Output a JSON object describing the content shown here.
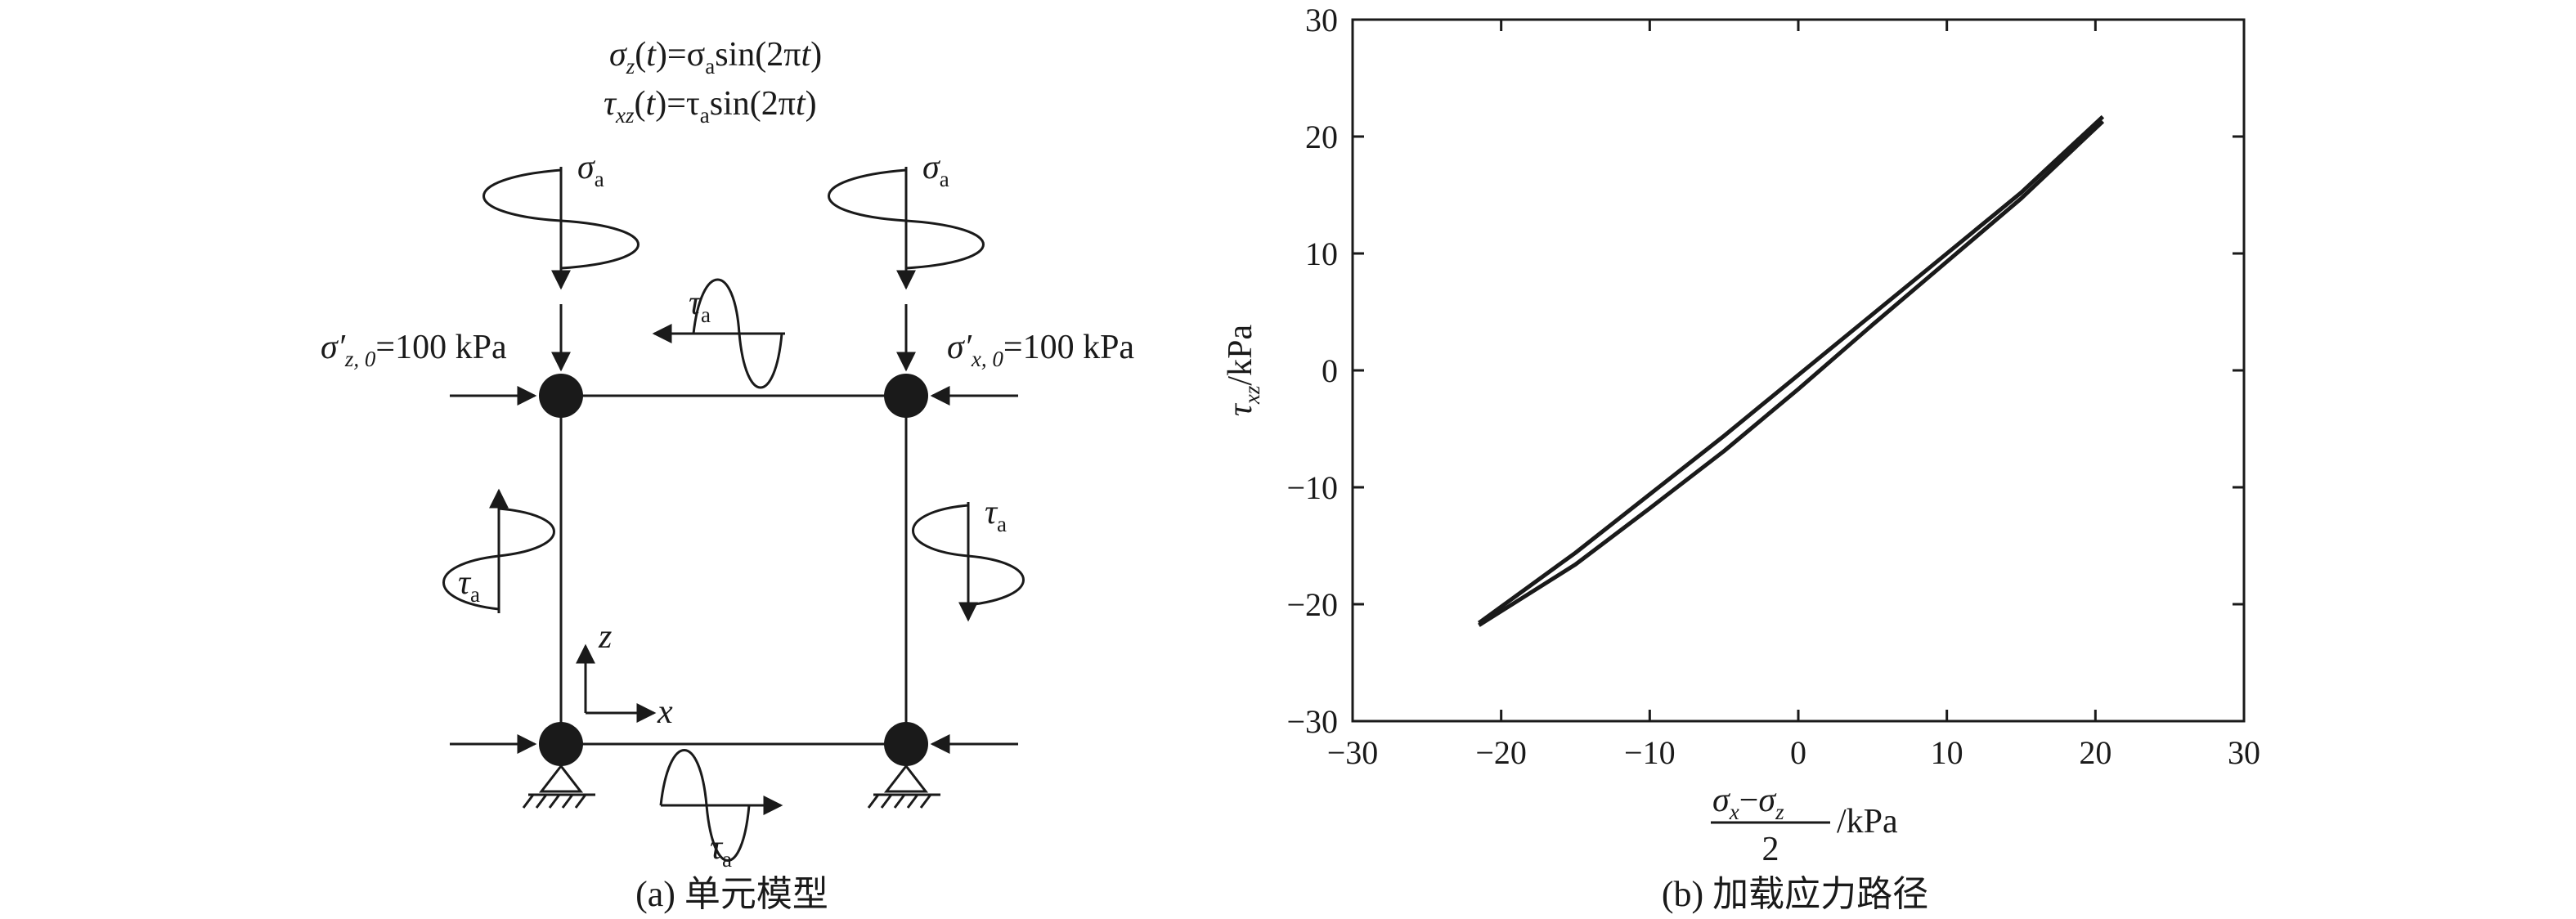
{
  "left_panel": {
    "caption": "(a) 单元模型",
    "eq1": {
      "lhs": "σ",
      "lhs_sub": "z",
      "mid1": "(",
      "t": "t",
      "mid2": ")=σ",
      "amp_sub": "a",
      "tail": "sin(2π",
      "t2": "t",
      "close": ")"
    },
    "eq2": {
      "lhs": "τ",
      "lhs_sub": "xz",
      "mid1": "(",
      "t": "t",
      "mid2": ")=τ",
      "amp_sub": "a",
      "tail": "sin(2π",
      "t2": "t",
      "close": ")"
    },
    "sigma_sym": "σ",
    "tau_sym": "τ",
    "a_sub": "a",
    "confining_left": {
      "sym": "σ′",
      "sub": "z, 0",
      "value": "=100 kPa"
    },
    "confining_right": {
      "sym": "σ′",
      "sub": "x, 0",
      "value": "=100 kPa"
    },
    "axis_x": "x",
    "axis_z": "z"
  },
  "right_panel": {
    "caption": "(b) 加载应力路径",
    "ylabel": {
      "sym": "τ",
      "sub": "xz",
      "unit": "/kPa"
    },
    "xlabel": {
      "num_a": "σ",
      "num_a_sub": "x",
      "minus": "−",
      "num_b": "σ",
      "num_b_sub": "z",
      "den": "2",
      "unit": "/kPa"
    }
  },
  "chart_data": {
    "type": "line",
    "title": "",
    "xlim": [
      -30,
      30
    ],
    "ylim": [
      -30,
      30
    ],
    "xticks": [
      -30,
      -20,
      -10,
      0,
      10,
      20,
      30
    ],
    "yticks": [
      -30,
      -20,
      -10,
      0,
      10,
      20,
      30
    ],
    "xtick_labels": [
      "−30",
      "−20",
      "−10",
      "0",
      "10",
      "20",
      "30"
    ],
    "ytick_labels": [
      "−30",
      "−20",
      "−10",
      "0",
      "10",
      "20",
      "30"
    ],
    "grid": false,
    "series": [
      {
        "values_upper": [
          [
            -21.5,
            -21.6
          ],
          [
            -15,
            -15.6
          ],
          [
            -10,
            -10.6
          ],
          [
            -5,
            -5.6
          ],
          [
            0,
            -0.4
          ],
          [
            5,
            4.8
          ],
          [
            10,
            10.0
          ],
          [
            15,
            15.2
          ],
          [
            20.5,
            21.7
          ]
        ],
        "values_lower": [
          [
            -21.5,
            -21.8
          ],
          [
            -15,
            -16.6
          ],
          [
            -10,
            -11.8
          ],
          [
            -5,
            -6.9
          ],
          [
            0,
            -1.6
          ],
          [
            5,
            3.9
          ],
          [
            10,
            9.3
          ],
          [
            15,
            14.7
          ],
          [
            20.5,
            21.3
          ]
        ],
        "color": "#1a1a1a"
      }
    ]
  }
}
